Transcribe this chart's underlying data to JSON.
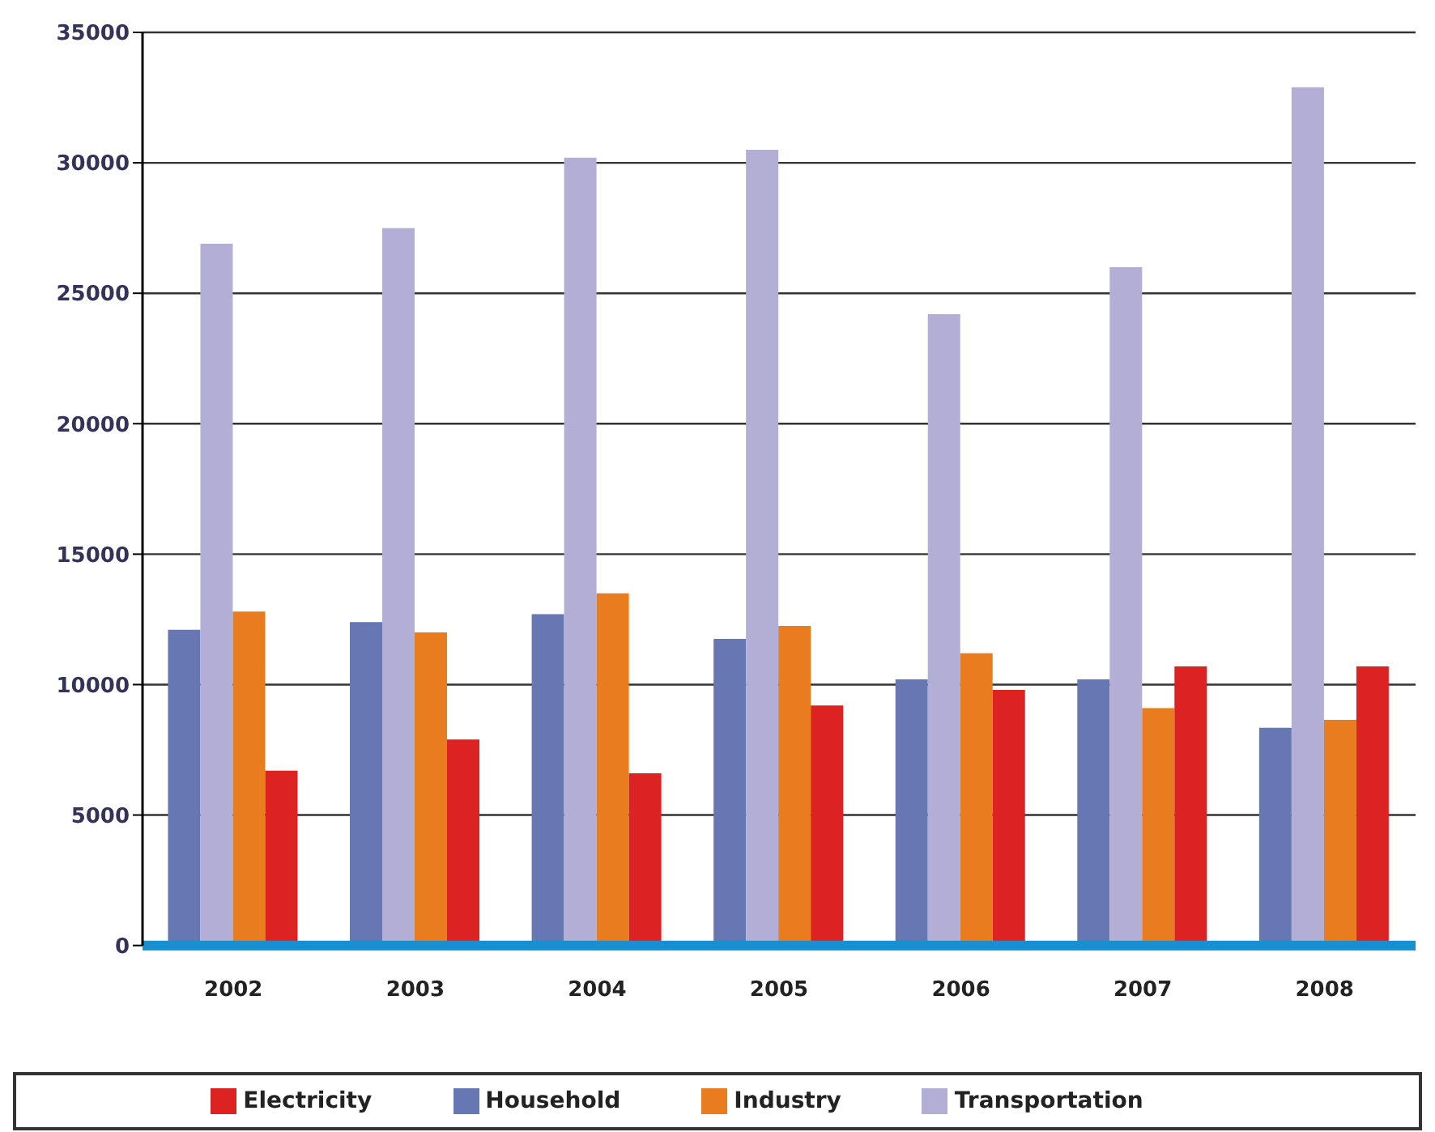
{
  "chart_data": {
    "type": "bar",
    "categories": [
      "2002",
      "2003",
      "2004",
      "2005",
      "2006",
      "2007",
      "2008"
    ],
    "series": [
      {
        "name": "Household",
        "color": "#6677b3",
        "values": [
          12100,
          12400,
          12700,
          11750,
          10200,
          10200,
          8350
        ]
      },
      {
        "name": "Transportation",
        "color": "#b3aed6",
        "values": [
          26900,
          27500,
          30200,
          30500,
          24200,
          26000,
          32900
        ]
      },
      {
        "name": "Industry",
        "color": "#e87c1e",
        "values": [
          12800,
          12000,
          13500,
          12250,
          11200,
          9100,
          8650
        ]
      },
      {
        "name": "Electricity",
        "color": "#dd2222",
        "values": [
          6700,
          7900,
          6600,
          9200,
          9800,
          10700,
          10700
        ]
      }
    ],
    "ylim": [
      0,
      35000
    ],
    "yticks": [
      0,
      5000,
      10000,
      15000,
      20000,
      25000,
      30000,
      35000
    ],
    "grid": "y",
    "legend": "bottom"
  }
}
